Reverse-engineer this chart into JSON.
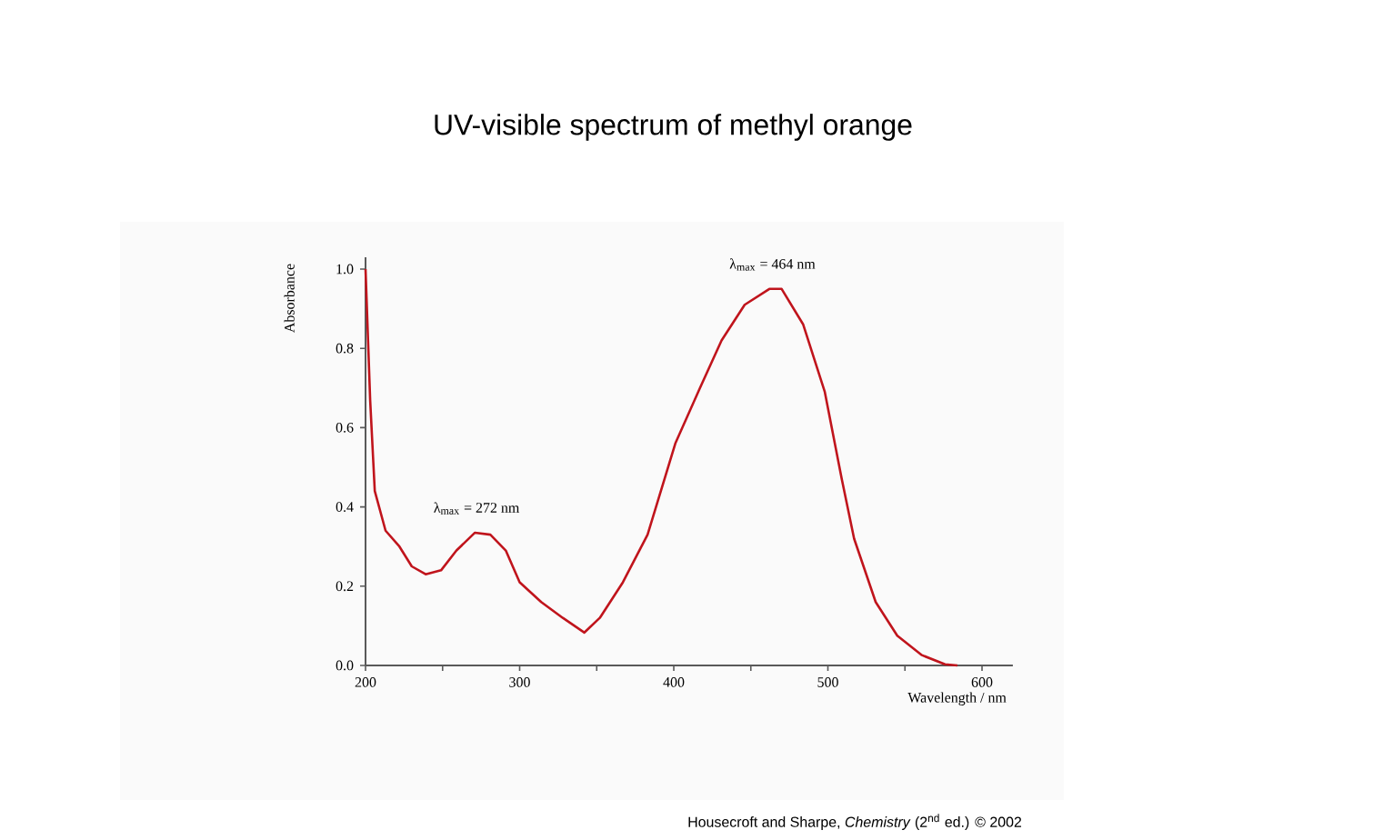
{
  "chart_data": {
    "type": "line",
    "title": "UV-visible spectrum of methyl orange",
    "xlabel": "Wavelength / nm",
    "ylabel": "Absorbance",
    "x": [
      200,
      203,
      206,
      213,
      222,
      230,
      239,
      249,
      259,
      271,
      281,
      291,
      300,
      314,
      328,
      342,
      352,
      367,
      383,
      401,
      417,
      431,
      446,
      462,
      470,
      484,
      498,
      509,
      517,
      531,
      545,
      561,
      576,
      584
    ],
    "series": [
      {
        "color": "#c0141c",
        "values": [
          1.0,
          0.67,
          0.44,
          0.34,
          0.3,
          0.25,
          0.23,
          0.24,
          0.29,
          0.335,
          0.33,
          0.29,
          0.21,
          0.16,
          0.12,
          0.083,
          0.12,
          0.21,
          0.33,
          0.56,
          0.7,
          0.82,
          0.91,
          0.95,
          0.95,
          0.86,
          0.69,
          0.47,
          0.32,
          0.16,
          0.075,
          0.026,
          0.003,
          0.0
        ]
      }
    ],
    "xlim": [
      200,
      620
    ],
    "ylim": [
      0,
      1.03
    ],
    "xticks": [
      200,
      {
        "value": 250,
        "label": null
      },
      300,
      {
        "value": 350,
        "label": null
      },
      400,
      {
        "value": 450,
        "label": null
      },
      500,
      {
        "value": 550,
        "label": null
      },
      600
    ],
    "yticks": [
      {
        "value": 0,
        "label": "0.0"
      },
      0.2,
      0.4,
      0.6,
      0.8,
      {
        "value": 1,
        "label": "1.0"
      }
    ],
    "grid": false,
    "marker": "none",
    "line_style": "solid",
    "annotations": [
      {
        "text": "λ$_{max}$ = 272 nm",
        "x": 272,
        "y": 0.335
      },
      {
        "text": "λ$_{max}$ = 464 nm",
        "x": 464,
        "y": 0.95
      },
      "Housecroft and Sharpe, *Chemistry* (2$^{nd}$ ed.) © 2002"
    ]
  }
}
